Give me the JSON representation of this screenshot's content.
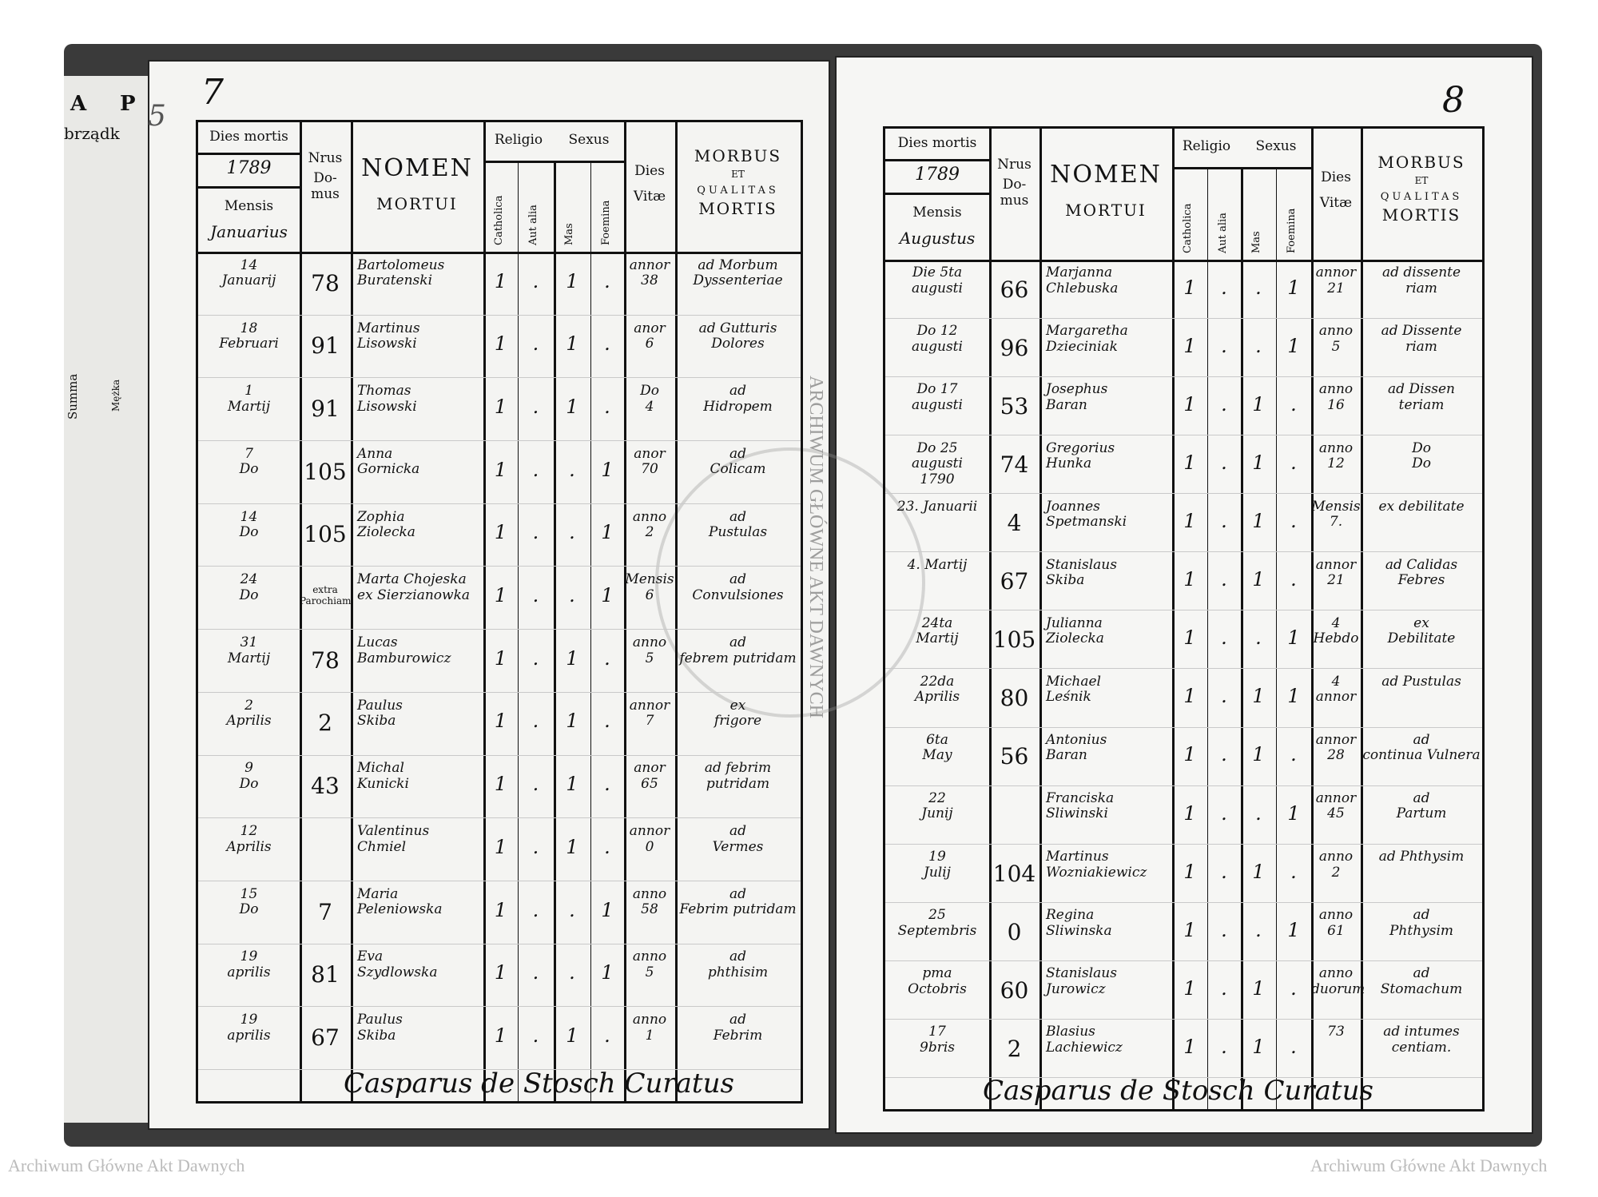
{
  "watermark": "Archiwum Główne Akt Dawnych",
  "seal_text": "ARCHIWUM GŁÓWNE AKT DAWNYCH",
  "prev_page": {
    "letters": [
      "A",
      "P"
    ],
    "fragment": "brządk",
    "summa": "Summa",
    "col": "Mężka"
  },
  "page_numbers": {
    "left": "7",
    "right": "8",
    "prev": "5"
  },
  "header": {
    "dies_mortis": "Dies mortis",
    "nrus": "Nrus",
    "domus": "Do-\nmus",
    "nomen": "NOMEN",
    "mortui": "MORTUI",
    "religio": "Religio",
    "sexus": "Sexus",
    "catholica": "Catholica",
    "aut_alia": "Aut alia",
    "mas": "Mas",
    "foemina": "Foemina",
    "dies_vitae": "Dies\nVitæ",
    "morbus": "MORBUS",
    "et": "ET",
    "qualitas": "QUALITAS",
    "mortis": "MORTIS",
    "mensis": "Mensis"
  },
  "left_page": {
    "year": "1789",
    "month": "Januarius",
    "signature": "Casparus de Stosch Curatus",
    "rows": [
      {
        "date": "14\nJanuarij",
        "house": "78",
        "name": "Bartolomeus\nBuratenski",
        "catholica": "1",
        "aut_alia": ".",
        "mas": "1",
        "foemina": ".",
        "vitae": "annor\n38",
        "morbus": "ad Morbum\nDyssenteriae"
      },
      {
        "date": "18\nFebruari",
        "house": "91",
        "name": "Martinus\nLisowski",
        "catholica": "1",
        "aut_alia": ".",
        "mas": "1",
        "foemina": ".",
        "vitae": "anor\n6",
        "morbus": "ad Gutturis\nDolores"
      },
      {
        "date": "1\nMartij",
        "house": "91",
        "name": "Thomas\nLisowski",
        "catholica": "1",
        "aut_alia": ".",
        "mas": "1",
        "foemina": ".",
        "vitae": "Do\n4",
        "morbus": "ad\nHidropem"
      },
      {
        "date": "7\nDo",
        "house": "105",
        "name": "Anna\nGornicka",
        "catholica": "1",
        "aut_alia": ".",
        "mas": ".",
        "foemina": "1",
        "vitae": "anor\n70",
        "morbus": "ad\nColicam"
      },
      {
        "date": "14\nDo",
        "house": "105",
        "name": "Zophia\nZiolecka",
        "catholica": "1",
        "aut_alia": ".",
        "mas": ".",
        "foemina": "1",
        "vitae": "anno\n2",
        "morbus": "ad\nPustulas"
      },
      {
        "date": "24\nDo",
        "house": "extra\nParochiam",
        "name": "Marta Chojeska\nex Sierzianowka",
        "catholica": "1",
        "aut_alia": ".",
        "mas": ".",
        "foemina": "1",
        "vitae": "Mensis\n6",
        "morbus": "ad\nConvulsiones"
      },
      {
        "date": "31\nMartij",
        "house": "78",
        "name": "Lucas\nBamburowicz",
        "catholica": "1",
        "aut_alia": ".",
        "mas": "1",
        "foemina": ".",
        "vitae": "anno\n5",
        "morbus": "ad\nfebrem putridam"
      },
      {
        "date": "2\nAprilis",
        "house": "2",
        "name": "Paulus\nSkiba",
        "catholica": "1",
        "aut_alia": ".",
        "mas": "1",
        "foemina": ".",
        "vitae": "annor\n7",
        "morbus": "ex\nfrigore"
      },
      {
        "date": "9\nDo",
        "house": "43",
        "name": "Michal\nKunicki",
        "catholica": "1",
        "aut_alia": ".",
        "mas": "1",
        "foemina": ".",
        "vitae": "anor\n65",
        "morbus": "ad febrim\nputridam"
      },
      {
        "date": "12\nAprilis",
        "house": "",
        "name": "Valentinus\nChmiel",
        "catholica": "1",
        "aut_alia": ".",
        "mas": "1",
        "foemina": ".",
        "vitae": "annor\n0",
        "morbus": "ad\nVermes"
      },
      {
        "date": "15\nDo",
        "house": "7",
        "name": "Maria\nPeleniowska",
        "catholica": "1",
        "aut_alia": ".",
        "mas": ".",
        "foemina": "1",
        "vitae": "anno\n58",
        "morbus": "ad\nFebrim putridam"
      },
      {
        "date": "19\naprilis",
        "house": "81",
        "name": "Eva\nSzydlowska",
        "catholica": "1",
        "aut_alia": ".",
        "mas": ".",
        "foemina": "1",
        "vitae": "anno\n5",
        "morbus": "ad\nphthisim"
      },
      {
        "date": "19\naprilis",
        "house": "67",
        "name": "Paulus\nSkiba",
        "catholica": "1",
        "aut_alia": ".",
        "mas": "1",
        "foemina": ".",
        "vitae": "anno\n1",
        "morbus": "ad\nFebrim"
      }
    ]
  },
  "right_page": {
    "year": "1789",
    "month": "Augustus",
    "signature": "Casparus de Stosch Curatus",
    "rows": [
      {
        "date": "Die 5ta\naugusti",
        "house": "66",
        "name": "Marjanna\nChlebuska",
        "catholica": "1",
        "aut_alia": ".",
        "mas": ".",
        "foemina": "1",
        "vitae": "annor\n21",
        "morbus": "ad dissente\nriam"
      },
      {
        "date": "Do 12\naugusti",
        "house": "96",
        "name": "Margaretha\nDzieciniak",
        "catholica": "1",
        "aut_alia": ".",
        "mas": ".",
        "foemina": "1",
        "vitae": "anno\n5",
        "morbus": "ad Dissente\nriam"
      },
      {
        "date": "Do 17\naugusti",
        "house": "53",
        "name": "Josephus\nBaran",
        "catholica": "1",
        "aut_alia": ".",
        "mas": "1",
        "foemina": ".",
        "vitae": "anno\n16",
        "morbus": "ad Dissen\nteriam"
      },
      {
        "date": "Do 25\naugusti\n1790",
        "house": "74",
        "name": "Gregorius\nHunka",
        "catholica": "1",
        "aut_alia": ".",
        "mas": "1",
        "foemina": ".",
        "vitae": "anno\n12",
        "morbus": "Do\nDo"
      },
      {
        "date": "23. Januarii",
        "house": "4",
        "name": "Joannes\nSpetmanski",
        "catholica": "1",
        "aut_alia": ".",
        "mas": "1",
        "foemina": ".",
        "vitae": "Mensis\n7.",
        "morbus": "ex debilitate"
      },
      {
        "date": "4. Martij",
        "house": "67",
        "name": "Stanislaus\nSkiba",
        "catholica": "1",
        "aut_alia": ".",
        "mas": "1",
        "foemina": ".",
        "vitae": "annor\n21",
        "morbus": "ad Calidas\nFebres"
      },
      {
        "date": "24ta\nMartij",
        "house": "105",
        "name": "Julianna\nZiolecka",
        "catholica": "1",
        "aut_alia": ".",
        "mas": ".",
        "foemina": "1",
        "vitae": "4\nHebdo",
        "morbus": "ex\nDebilitate"
      },
      {
        "date": "22da\nAprilis",
        "house": "80",
        "name": "Michael\nLeśnik",
        "catholica": "1",
        "aut_alia": ".",
        "mas": "1",
        "foemina": "1",
        "vitae": "4\nannor",
        "morbus": "ad Pustulas"
      },
      {
        "date": "6ta\nMay",
        "house": "56",
        "name": "Antonius\nBaran",
        "catholica": "1",
        "aut_alia": ".",
        "mas": "1",
        "foemina": ".",
        "vitae": "annor\n28",
        "morbus": "ad\ncontinua Vulnera"
      },
      {
        "date": "22\nJunij",
        "house": "",
        "name": "Franciska\nSliwinski",
        "catholica": "1",
        "aut_alia": ".",
        "mas": ".",
        "foemina": "1",
        "vitae": "annor\n45",
        "morbus": "ad\nPartum"
      },
      {
        "date": "19\nJulij",
        "house": "104",
        "name": "Martinus\nWozniakiewicz",
        "catholica": "1",
        "aut_alia": ".",
        "mas": "1",
        "foemina": ".",
        "vitae": "anno\n2",
        "morbus": "ad Phthysim"
      },
      {
        "date": "25\nSeptembris",
        "house": "0",
        "name": "Regina\nSliwinska",
        "catholica": "1",
        "aut_alia": ".",
        "mas": ".",
        "foemina": "1",
        "vitae": "anno\n61",
        "morbus": "ad\nPhthysim"
      },
      {
        "date": "pma\nOctobris",
        "house": "60",
        "name": "Stanislaus\nJurowicz",
        "catholica": "1",
        "aut_alia": ".",
        "mas": "1",
        "foemina": ".",
        "vitae": "anno\nduorum",
        "morbus": "ad\nStomachum"
      },
      {
        "date": "17\n9bris",
        "house": "2",
        "name": "Blasius\nLachiewicz",
        "catholica": "1",
        "aut_alia": ".",
        "mas": "1",
        "foemina": ".",
        "vitae": "73",
        "morbus": "ad intumes\ncentiam."
      }
    ]
  }
}
